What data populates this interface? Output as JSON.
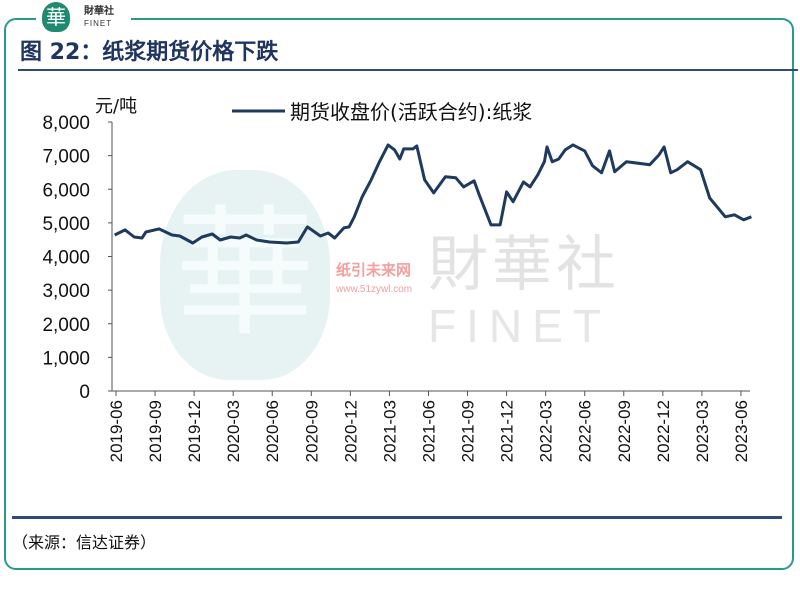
{
  "header": {
    "logo_cn": "財華社",
    "logo_en": "FINET",
    "logo_glyph": "華"
  },
  "title": "图 22：纸浆期货价格下跌",
  "source": "（来源：信达证券）",
  "watermarks": {
    "cn": "財華社",
    "en": "FINET",
    "site_cn": "纸引未来网",
    "site_url": "www.51zywl.com"
  },
  "colors": {
    "line": "#1f3a5f",
    "frame": "#2a9a8a",
    "rule": "#2f4a7a"
  },
  "chart_data": {
    "type": "line",
    "title": "图 22：纸浆期货价格下跌",
    "ylabel": "元/吨",
    "xlabel": "",
    "ylim": [
      0,
      8000
    ],
    "yticks": [
      0,
      1000,
      2000,
      3000,
      4000,
      5000,
      6000,
      7000,
      8000
    ],
    "ytick_labels": [
      "0",
      "1,000",
      "2,000",
      "3,000",
      "4,000",
      "5,000",
      "6,000",
      "7,000",
      "8,000"
    ],
    "x_unit": "months since 2019-06",
    "xlim": [
      -0.3,
      49.2
    ],
    "xtick_labels": [
      "2019-06",
      "2019-09",
      "2019-12",
      "2020-03",
      "2020-06",
      "2020-09",
      "2020-12",
      "2021-03",
      "2021-06",
      "2021-09",
      "2021-12",
      "2022-03",
      "2022-06",
      "2022-09",
      "2022-12",
      "2023-03",
      "2023-06"
    ],
    "legend": "top-center",
    "grid": false,
    "series": [
      {
        "name": "期货收盘价(活跃合约):纸浆",
        "points": [
          [
            -0.1,
            4640
          ],
          [
            0.7,
            4790
          ],
          [
            1.4,
            4580
          ],
          [
            2.0,
            4550
          ],
          [
            2.3,
            4730
          ],
          [
            3.3,
            4820
          ],
          [
            4.3,
            4640
          ],
          [
            4.9,
            4610
          ],
          [
            5.9,
            4400
          ],
          [
            6.6,
            4580
          ],
          [
            7.4,
            4670
          ],
          [
            8.0,
            4490
          ],
          [
            8.8,
            4580
          ],
          [
            9.5,
            4550
          ],
          [
            10.0,
            4640
          ],
          [
            10.8,
            4490
          ],
          [
            11.8,
            4430
          ],
          [
            13.1,
            4400
          ],
          [
            14.0,
            4430
          ],
          [
            14.7,
            4880
          ],
          [
            15.7,
            4610
          ],
          [
            16.3,
            4700
          ],
          [
            16.8,
            4550
          ],
          [
            17.5,
            4850
          ],
          [
            17.9,
            4880
          ],
          [
            18.3,
            5180
          ],
          [
            18.9,
            5770
          ],
          [
            19.6,
            6280
          ],
          [
            20.2,
            6790
          ],
          [
            20.9,
            7320
          ],
          [
            21.4,
            7170
          ],
          [
            21.8,
            6900
          ],
          [
            22.1,
            7200
          ],
          [
            22.8,
            7200
          ],
          [
            23.1,
            7290
          ],
          [
            23.7,
            6280
          ],
          [
            24.4,
            5890
          ],
          [
            25.3,
            6370
          ],
          [
            26.1,
            6340
          ],
          [
            26.7,
            6070
          ],
          [
            27.5,
            6250
          ],
          [
            27.9,
            5830
          ],
          [
            28.8,
            4940
          ],
          [
            29.5,
            4940
          ],
          [
            30.0,
            5920
          ],
          [
            30.5,
            5630
          ],
          [
            31.3,
            6220
          ],
          [
            31.8,
            6070
          ],
          [
            32.4,
            6430
          ],
          [
            32.9,
            6820
          ],
          [
            33.1,
            7260
          ],
          [
            33.5,
            6820
          ],
          [
            34.0,
            6900
          ],
          [
            34.5,
            7170
          ],
          [
            35.1,
            7320
          ],
          [
            36.0,
            7140
          ],
          [
            36.6,
            6700
          ],
          [
            37.3,
            6490
          ],
          [
            37.9,
            7140
          ],
          [
            38.3,
            6520
          ],
          [
            39.2,
            6820
          ],
          [
            41.0,
            6730
          ],
          [
            41.7,
            7020
          ],
          [
            42.1,
            7260
          ],
          [
            42.6,
            6490
          ],
          [
            43.1,
            6580
          ],
          [
            43.9,
            6820
          ],
          [
            44.9,
            6580
          ],
          [
            45.6,
            5740
          ],
          [
            46.8,
            5180
          ],
          [
            47.5,
            5240
          ],
          [
            48.2,
            5090
          ],
          [
            48.8,
            5180
          ]
        ]
      }
    ]
  }
}
